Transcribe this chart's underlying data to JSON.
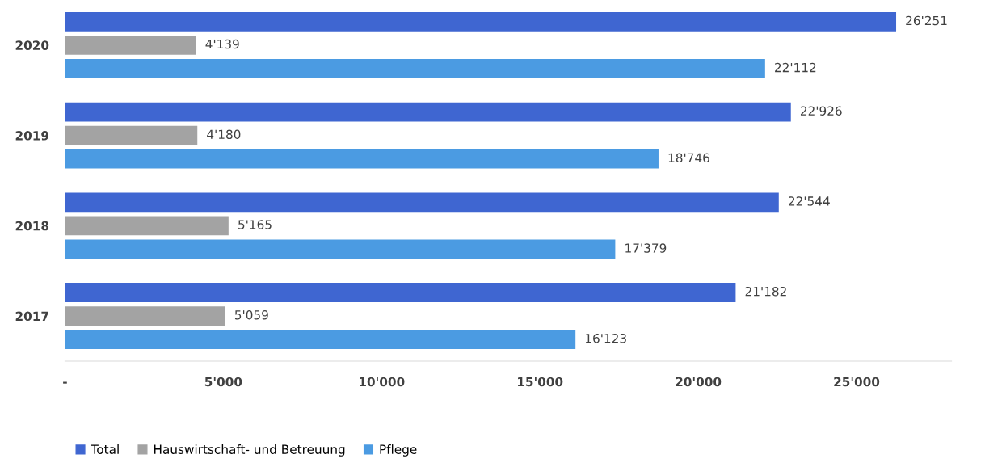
{
  "chart_data": {
    "type": "bar",
    "orientation": "horizontal",
    "categories": [
      "2020",
      "2019",
      "2018",
      "2017"
    ],
    "series": [
      {
        "name": "Total",
        "color": "#3f66d1",
        "values": [
          26251,
          22926,
          22544,
          21182
        ],
        "value_labels": [
          "26'251",
          "22'926",
          "22'544",
          "21'182"
        ]
      },
      {
        "name": "Hauswirtschaft- und Betreuung",
        "color": "#a3a3a3",
        "values": [
          4139,
          4180,
          5165,
          5059
        ],
        "value_labels": [
          "4'139",
          "4'180",
          "5'165",
          "5'059"
        ]
      },
      {
        "name": "Pflege",
        "color": "#4b9be2",
        "values": [
          22112,
          18746,
          17379,
          16123
        ],
        "value_labels": [
          "22'112",
          "18'746",
          "17'379",
          "16'123"
        ]
      }
    ],
    "xticks": [
      {
        "value": 0,
        "label": "-"
      },
      {
        "value": 5000,
        "label": "5'000"
      },
      {
        "value": 10000,
        "label": "10'000"
      },
      {
        "value": 15000,
        "label": "15'000"
      },
      {
        "value": 20000,
        "label": "20'000"
      },
      {
        "value": 25000,
        "label": "25'000"
      }
    ],
    "xlim": [
      0,
      28000
    ],
    "grid": false,
    "legend": "bottom left"
  }
}
